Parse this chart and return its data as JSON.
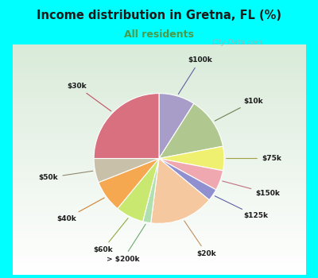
{
  "title": "Income distribution in Gretna, FL (%)",
  "subtitle": "All residents",
  "title_color": "#1a1a1a",
  "subtitle_color": "#4a9a4a",
  "background_outer": "#00FFFF",
  "watermark": "City-Data.com",
  "slices": [
    {
      "label": "$100k",
      "value": 9,
      "color": "#a89cc8"
    },
    {
      "label": "$10k",
      "value": 13,
      "color": "#b0c890"
    },
    {
      "label": "$75k",
      "value": 6,
      "color": "#f0f070"
    },
    {
      "label": "$150k",
      "value": 5,
      "color": "#f0a8b0"
    },
    {
      "label": "$125k",
      "value": 3,
      "color": "#9090d0"
    },
    {
      "label": "$20k",
      "value": 16,
      "color": "#f5c8a0"
    },
    {
      "label": "> $200k",
      "value": 2,
      "color": "#b0e0b0"
    },
    {
      "label": "$60k",
      "value": 7,
      "color": "#c8e870"
    },
    {
      "label": "$40k",
      "value": 8,
      "color": "#f5a850"
    },
    {
      "label": "$50k",
      "value": 6,
      "color": "#c8c0a8"
    },
    {
      "label": "$30k",
      "value": 25,
      "color": "#d87080"
    }
  ],
  "label_colors": {
    "$100k": "#6060a0",
    "$10k": "#708050",
    "$75k": "#a0a040",
    "$150k": "#c07080",
    "$125k": "#6060a0",
    "$20k": "#c09060",
    "> $200k": "#70a870",
    "$60k": "#90a840",
    "$40k": "#d08030",
    "$50k": "#908870",
    "$30k": "#c05060"
  }
}
